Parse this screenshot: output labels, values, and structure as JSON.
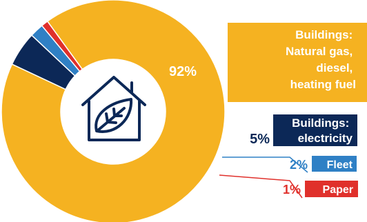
{
  "chart_data": {
    "type": "pie",
    "variant": "donut",
    "unit": "%",
    "slices": [
      {
        "key": "natural_gas",
        "label_lines": [
          "Buildings:",
          "Natural gas,",
          "diesel,",
          "heating fuel"
        ],
        "value": 92,
        "value_label": "92%",
        "color": "#f5b221"
      },
      {
        "key": "electricity",
        "label_lines": [
          "Buildings:",
          "electricity"
        ],
        "value": 5,
        "value_label": "5%",
        "color": "#0c2857"
      },
      {
        "key": "fleet",
        "label_lines": [
          "Fleet"
        ],
        "value": 2,
        "value_label": "2%",
        "color": "#2f80c5"
      },
      {
        "key": "paper",
        "label_lines": [
          "Paper"
        ],
        "value": 1,
        "value_label": "1%",
        "color": "#e0302b"
      }
    ]
  },
  "icon": {
    "name": "house-leaf-icon",
    "color": "#0c2857"
  }
}
